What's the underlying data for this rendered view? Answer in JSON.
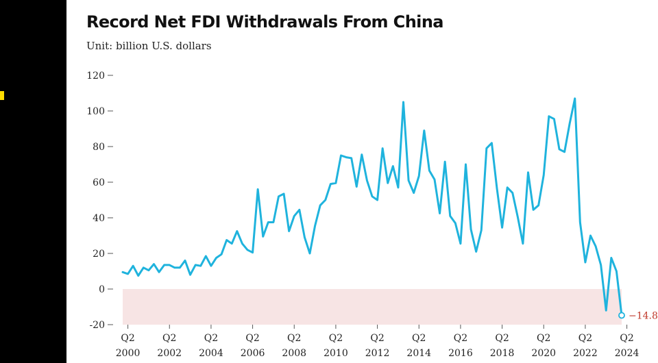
{
  "title": "Record Net FDI Withdrawals From China",
  "subtitle": "Unit: billion U.S. dollars",
  "colors": {
    "line": "#1fb3dd",
    "negative_band": "#f7e4e4",
    "end_label": "#c0392b",
    "axis": "#555555"
  },
  "chart_data": {
    "type": "line",
    "title": "Record Net FDI Withdrawals From China",
    "ylabel": "Unit: billion U.S. dollars",
    "xlabel": "",
    "ylim": [
      -20,
      120
    ],
    "yticks": [
      -20,
      0,
      20,
      40,
      60,
      80,
      100,
      120
    ],
    "grid": false,
    "x_period_start": "2000 Q1",
    "x_tick_labels": [
      {
        "quarter": "Q2",
        "year": "2000"
      },
      {
        "quarter": "Q2",
        "year": "2002"
      },
      {
        "quarter": "Q2",
        "year": "2004"
      },
      {
        "quarter": "Q2",
        "year": "2006"
      },
      {
        "quarter": "Q2",
        "year": "2008"
      },
      {
        "quarter": "Q2",
        "year": "2010"
      },
      {
        "quarter": "Q2",
        "year": "2012"
      },
      {
        "quarter": "Q2",
        "year": "2014"
      },
      {
        "quarter": "Q2",
        "year": "2016"
      },
      {
        "quarter": "Q2",
        "year": "2018"
      },
      {
        "quarter": "Q2",
        "year": "2020"
      },
      {
        "quarter": "Q2",
        "year": "2022"
      },
      {
        "quarter": "Q2",
        "year": "2024"
      }
    ],
    "series": [
      {
        "values": [
          9.5,
          8.5,
          13,
          7.5,
          12,
          10.5,
          14,
          9.5,
          13.5,
          13.5,
          12,
          12,
          16,
          8,
          13.5,
          13,
          18.5,
          13,
          17.5,
          19.5,
          27.5,
          25.5,
          32.5,
          25.5,
          22,
          20.5,
          56,
          29.5,
          37.5,
          37.5,
          52,
          53.5,
          32.5,
          41,
          44.5,
          29,
          20,
          35.5,
          47,
          50,
          59,
          59.5,
          75,
          74,
          73.5,
          57.5,
          75.5,
          61,
          52,
          50,
          79,
          59.5,
          69,
          57,
          105,
          61,
          54,
          63.5,
          89,
          66.5,
          61.5,
          42.5,
          71.5,
          41,
          37,
          25.5,
          70,
          33.5,
          21,
          33,
          79,
          82,
          56.5,
          34.5,
          57,
          54,
          40.5,
          25.5,
          65.5,
          44.5,
          47,
          64,
          97,
          95.5,
          78.5,
          77,
          93,
          107,
          37.5,
          15,
          30,
          24,
          13.5,
          -12,
          17.5,
          10,
          -14.8
        ]
      }
    ],
    "end_annotation": "−14.8"
  }
}
